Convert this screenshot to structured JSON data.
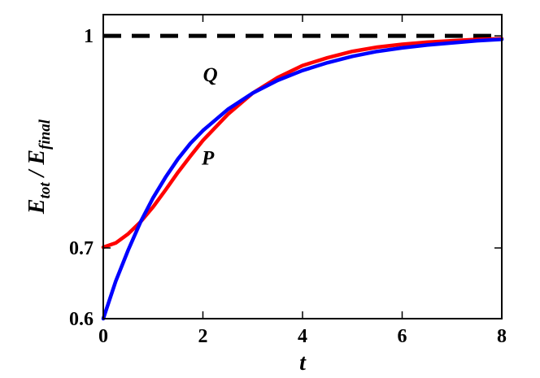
{
  "chart_data": {
    "type": "line",
    "xlabel": "t",
    "ylabel": {
      "main_1": "E",
      "sub_1": "tot",
      "sep": " / ",
      "main_2": "E",
      "sub_2": "final"
    },
    "xlim": [
      0,
      8
    ],
    "ylim": [
      0.6,
      1.03
    ],
    "x_ticks": [
      "0",
      "2",
      "4",
      "6",
      "8"
    ],
    "y_ticks": [
      "0.6",
      "0.7",
      "1"
    ],
    "grid": false,
    "reference_line": {
      "y": 1,
      "style": "dashed",
      "color": "#000000"
    },
    "series": [
      {
        "name": "P",
        "color": "#ff0000",
        "x": [
          0,
          0.25,
          0.5,
          0.75,
          1,
          1.25,
          1.5,
          1.75,
          2,
          2.5,
          3,
          3.5,
          4,
          4.5,
          5,
          5.5,
          6,
          6.5,
          7,
          7.5,
          8
        ],
        "y": [
          0.701,
          0.707,
          0.72,
          0.737,
          0.758,
          0.782,
          0.807,
          0.83,
          0.852,
          0.889,
          0.919,
          0.941,
          0.958,
          0.969,
          0.978,
          0.984,
          0.988,
          0.991,
          0.993,
          0.995,
          0.996
        ]
      },
      {
        "name": "Q",
        "color": "#0000ff",
        "x": [
          0,
          0.25,
          0.5,
          0.75,
          1,
          1.25,
          1.5,
          1.75,
          2,
          2.5,
          3,
          3.5,
          4,
          4.5,
          5,
          5.5,
          6,
          6.5,
          7,
          7.5,
          8
        ],
        "y": [
          0.6,
          0.653,
          0.697,
          0.737,
          0.771,
          0.8,
          0.826,
          0.848,
          0.866,
          0.896,
          0.919,
          0.937,
          0.951,
          0.962,
          0.971,
          0.978,
          0.983,
          0.987,
          0.99,
          0.993,
          0.995
        ]
      }
    ],
    "annotations": [
      {
        "text": "Q",
        "x": 2.15,
        "y": 0.936
      },
      {
        "text": "P",
        "x": 2.1,
        "y": 0.818
      }
    ]
  }
}
